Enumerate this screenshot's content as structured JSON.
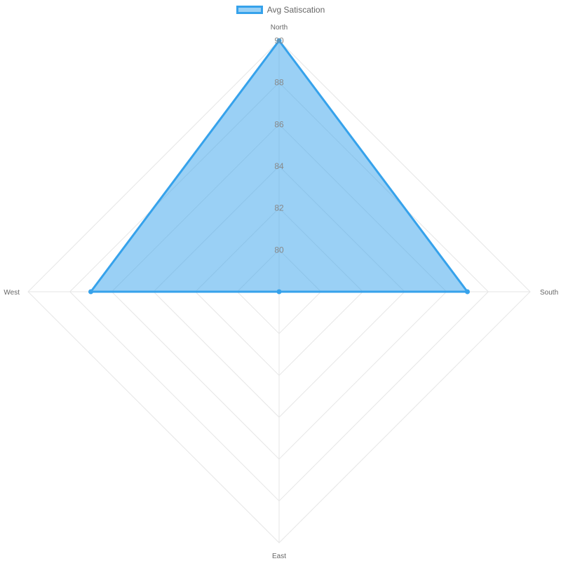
{
  "chart_data": {
    "type": "radar",
    "labels": [
      "North",
      "South",
      "East",
      "West"
    ],
    "series": [
      {
        "name": "Avg Satiscation",
        "values": [
          90,
          87,
          78,
          87
        ],
        "border_color": "#36a2eb",
        "fill_color": "rgba(54, 162, 235, 0.5)"
      }
    ],
    "r_min": 78,
    "r_max": 90,
    "ticks": [
      "80",
      "82",
      "84",
      "86",
      "88",
      "90"
    ],
    "grid_levels": 6,
    "grid_color": "#e6e6e6",
    "legend_position": "top"
  }
}
